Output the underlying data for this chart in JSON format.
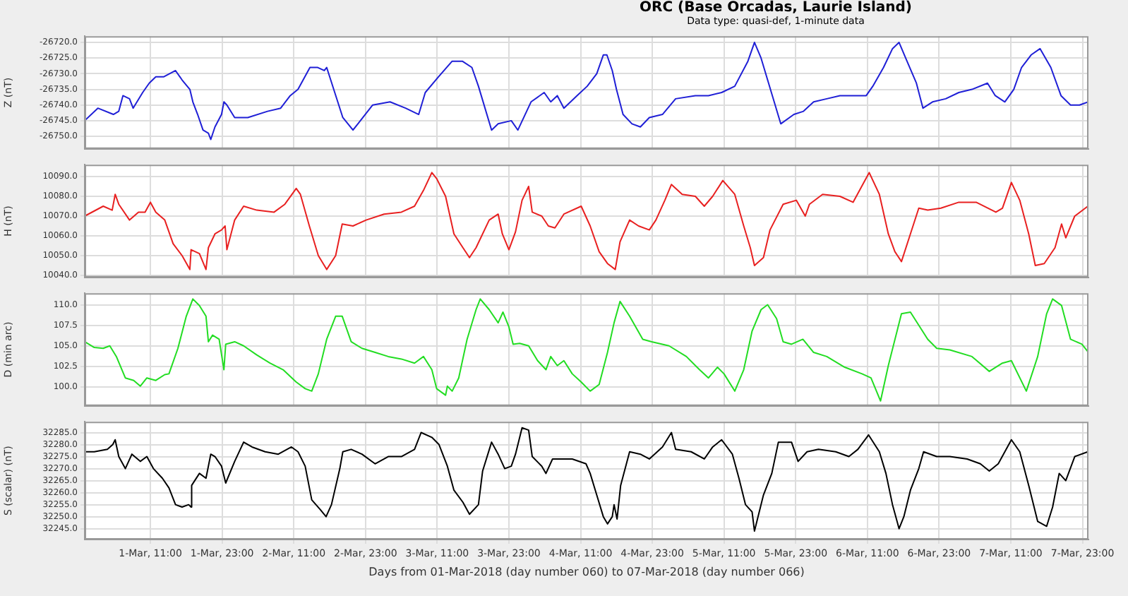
{
  "chart_data": [
    {
      "type": "line",
      "title": "ORC (Base Orcadas, Laurie Island)",
      "subtitle": "Data type: quasi-def, 1-minute data",
      "ylabel": "Z (nT)",
      "grid": true,
      "tick_labels": "y",
      "xlim": [
        "2018-03-01T00:00",
        "2018-03-08T00:00"
      ],
      "xticks": [
        {
          "value": "2018-03-01T11:00",
          "label": null
        },
        {
          "value": "2018-03-01T23:00",
          "label": null
        },
        {
          "value": "2018-03-02T11:00",
          "label": null
        },
        {
          "value": "2018-03-02T23:00",
          "label": null
        },
        {
          "value": "2018-03-03T11:00",
          "label": null
        },
        {
          "value": "2018-03-03T23:00",
          "label": null
        },
        {
          "value": "2018-03-04T11:00",
          "label": null
        },
        {
          "value": "2018-03-04T23:00",
          "label": null
        },
        {
          "value": "2018-03-05T11:00",
          "label": null
        },
        {
          "value": "2018-03-05T23:00",
          "label": null
        },
        {
          "value": "2018-03-06T11:00",
          "label": null
        },
        {
          "value": "2018-03-06T23:00",
          "label": null
        },
        {
          "value": "2018-03-07T11:00",
          "label": null
        },
        {
          "value": "2018-03-07T23:00",
          "label": null
        }
      ],
      "ylim": [
        -26754,
        -26718
      ],
      "yticks": [
        {
          "value": -26750,
          "label": "-26750.0"
        },
        {
          "value": -26745,
          "label": "-26745.0"
        },
        {
          "value": -26740,
          "label": "-26740.0"
        },
        {
          "value": -26735,
          "label": "-26735.0"
        },
        {
          "value": -26730,
          "label": "-26730.0"
        },
        {
          "value": -26725,
          "label": "-26725.0"
        },
        {
          "value": -26720,
          "label": "-26720.0"
        }
      ],
      "x": [
        "2018-03-01T00:00",
        "2018-03-01T02:12",
        "2018-03-01T04:48",
        "2018-03-01T05:42",
        "2018-03-01T06:24",
        "2018-03-01T07:30",
        "2018-03-01T08:06",
        "2018-03-01T09:42",
        "2018-03-01T10:48",
        "2018-03-01T11:54",
        "2018-03-01T13:12",
        "2018-03-01T15:12",
        "2018-03-01T16:18",
        "2018-03-01T17:36",
        "2018-03-01T18:06",
        "2018-03-01T18:54",
        "2018-03-01T19:48",
        "2018-03-01T20:42",
        "2018-03-01T21:06",
        "2018-03-01T21:48",
        "2018-03-01T22:54",
        "2018-03-01T23:18",
        "2018-03-01T23:48",
        "2018-03-02T01:06",
        "2018-03-02T03:18",
        "2018-03-02T06:36",
        "2018-03-02T08:48",
        "2018-03-02T10:24",
        "2018-03-02T11:42",
        "2018-03-02T13:42",
        "2018-03-02T15:00",
        "2018-03-02T16:06",
        "2018-03-02T16:30",
        "2018-03-02T19:12",
        "2018-03-02T20:54",
        "2018-03-03T00:12",
        "2018-03-03T03:06",
        "2018-03-03T05:42",
        "2018-03-03T07:54",
        "2018-03-03T09:00",
        "2018-03-03T11:12",
        "2018-03-03T13:30",
        "2018-03-03T15:12",
        "2018-03-03T16:48",
        "2018-03-03T17:54",
        "2018-03-03T20:06",
        "2018-03-03T21:12",
        "2018-03-03T23:24",
        "2018-03-04T00:30",
        "2018-03-04T02:42",
        "2018-03-04T04:54",
        "2018-03-04T06:00",
        "2018-03-04T07:06",
        "2018-03-04T08:12",
        "2018-03-04T10:24",
        "2018-03-04T12:06",
        "2018-03-04T13:42",
        "2018-03-04T14:48",
        "2018-03-04T15:24",
        "2018-03-04T16:18",
        "2018-03-04T17:00",
        "2018-03-04T18:06",
        "2018-03-04T19:36",
        "2018-03-04T21:00",
        "2018-03-04T22:30",
        "2018-03-05T00:42",
        "2018-03-05T02:54",
        "2018-03-05T06:12",
        "2018-03-05T08:24",
        "2018-03-05T10:36",
        "2018-03-05T12:48",
        "2018-03-05T15:00",
        "2018-03-05T16:06",
        "2018-03-05T17:12",
        "2018-03-05T18:18",
        "2018-03-05T20:30",
        "2018-03-05T22:42",
        "2018-03-06T00:18",
        "2018-03-06T02:00",
        "2018-03-06T04:12",
        "2018-03-06T06:24",
        "2018-03-06T08:36",
        "2018-03-06T10:48",
        "2018-03-06T11:54",
        "2018-03-06T13:42",
        "2018-03-06T15:12",
        "2018-03-06T16:18",
        "2018-03-06T17:24",
        "2018-03-06T19:12",
        "2018-03-06T20:18",
        "2018-03-06T21:54",
        "2018-03-07T00:06",
        "2018-03-07T02:18",
        "2018-03-07T04:30",
        "2018-03-07T07:06",
        "2018-03-07T08:24",
        "2018-03-07T10:00",
        "2018-03-07T11:30",
        "2018-03-07T12:48",
        "2018-03-07T14:24",
        "2018-03-07T15:54",
        "2018-03-07T17:42",
        "2018-03-07T19:24",
        "2018-03-07T21:00",
        "2018-03-07T22:30",
        "2018-03-08T00:00"
      ],
      "series": [
        {
          "color": "#1f1fd6",
          "values": [
            -26745,
            -26741,
            -26743,
            -26742,
            -26737,
            -26738,
            -26741,
            -26736,
            -26733,
            -26731,
            -26731,
            -26729,
            -26732,
            -26735,
            -26739,
            -26743,
            -26748,
            -26749,
            -26751,
            -26747,
            -26743,
            -26739,
            -26740,
            -26744,
            -26744,
            -26742,
            -26741,
            -26737,
            -26735,
            -26728,
            -26728,
            -26729,
            -26728,
            -26744,
            -26748,
            -26740,
            -26739,
            -26741,
            -26743,
            -26736,
            -26731,
            -26726,
            -26726,
            -26728,
            -26734,
            -26748,
            -26746,
            -26745,
            -26748,
            -26739,
            -26736,
            -26739,
            -26737,
            -26741,
            -26737,
            -26734,
            -26730,
            -26724,
            -26724,
            -26729,
            -26735,
            -26743,
            -26746,
            -26747,
            -26744,
            -26743,
            -26738,
            -26737,
            -26737,
            -26736,
            -26734,
            -26726,
            -26720,
            -26725,
            -26732,
            -26746,
            -26743,
            -26742,
            -26739,
            -26738,
            -26737,
            -26737,
            -26737,
            -26734,
            -26728,
            -26722,
            -26720,
            -26725,
            -26733,
            -26741,
            -26739,
            -26738,
            -26736,
            -26735,
            -26733,
            -26737,
            -26739,
            -26735,
            -26728,
            -26724,
            -26722,
            -26728,
            -26737,
            -26740,
            -26740,
            -26739
          ]
        }
      ]
    },
    {
      "type": "line",
      "ylabel": "H (nT)",
      "grid": true,
      "tick_labels": "y",
      "xlim": [
        "2018-03-01T00:00",
        "2018-03-08T00:00"
      ],
      "xticks": [
        {
          "value": "2018-03-01T11:00",
          "label": null
        },
        {
          "value": "2018-03-01T23:00",
          "label": null
        },
        {
          "value": "2018-03-02T11:00",
          "label": null
        },
        {
          "value": "2018-03-02T23:00",
          "label": null
        },
        {
          "value": "2018-03-03T11:00",
          "label": null
        },
        {
          "value": "2018-03-03T23:00",
          "label": null
        },
        {
          "value": "2018-03-04T11:00",
          "label": null
        },
        {
          "value": "2018-03-04T23:00",
          "label": null
        },
        {
          "value": "2018-03-05T11:00",
          "label": null
        },
        {
          "value": "2018-03-05T23:00",
          "label": null
        },
        {
          "value": "2018-03-06T11:00",
          "label": null
        },
        {
          "value": "2018-03-06T23:00",
          "label": null
        },
        {
          "value": "2018-03-07T11:00",
          "label": null
        },
        {
          "value": "2018-03-07T23:00",
          "label": null
        }
      ],
      "ylim": [
        10039,
        10096
      ],
      "yticks": [
        {
          "value": 10040,
          "label": "10040.0"
        },
        {
          "value": 10050,
          "label": "10050.0"
        },
        {
          "value": 10060,
          "label": "10060.0"
        },
        {
          "value": 10070,
          "label": "10070.0"
        },
        {
          "value": 10080,
          "label": "10080.0"
        },
        {
          "value": 10090,
          "label": "10090.0"
        }
      ],
      "x": [
        "2018-03-01T00:00",
        "2018-03-01T03:06",
        "2018-03-01T04:36",
        "2018-03-01T05:06",
        "2018-03-01T05:42",
        "2018-03-01T07:30",
        "2018-03-01T09:00",
        "2018-03-01T10:06",
        "2018-03-01T11:00",
        "2018-03-01T11:54",
        "2018-03-01T13:24",
        "2018-03-01T14:48",
        "2018-03-01T16:18",
        "2018-03-01T17:36",
        "2018-03-01T17:48",
        "2018-03-01T19:12",
        "2018-03-01T20:18",
        "2018-03-01T20:42",
        "2018-03-01T21:48",
        "2018-03-01T22:54",
        "2018-03-01T23:30",
        "2018-03-01T23:48",
        "2018-03-02T01:06",
        "2018-03-02T02:36",
        "2018-03-02T04:48",
        "2018-03-02T07:42",
        "2018-03-02T09:30",
        "2018-03-02T11:24",
        "2018-03-02T12:06",
        "2018-03-02T13:36",
        "2018-03-02T15:06",
        "2018-03-02T16:30",
        "2018-03-02T18:00",
        "2018-03-02T19:06",
        "2018-03-02T20:54",
        "2018-03-02T23:06",
        "2018-03-03T02:06",
        "2018-03-03T05:00",
        "2018-03-03T07:12",
        "2018-03-03T08:42",
        "2018-03-03T10:06",
        "2018-03-03T10:54",
        "2018-03-03T12:24",
        "2018-03-03T13:48",
        "2018-03-03T15:18",
        "2018-03-03T16:24",
        "2018-03-03T17:30",
        "2018-03-03T19:42",
        "2018-03-03T21:12",
        "2018-03-03T21:54",
        "2018-03-03T23:00",
        "2018-03-04T00:06",
        "2018-03-04T01:12",
        "2018-03-04T02:18",
        "2018-03-04T02:54",
        "2018-03-04T04:30",
        "2018-03-04T05:36",
        "2018-03-04T06:42",
        "2018-03-04T08:12",
        "2018-03-04T11:06",
        "2018-03-04T12:36",
        "2018-03-04T14:06",
        "2018-03-04T15:30",
        "2018-03-04T16:48",
        "2018-03-04T17:36",
        "2018-03-04T19:12",
        "2018-03-04T20:42",
        "2018-03-04T22:30",
        "2018-03-04T23:36",
        "2018-03-05T01:06",
        "2018-03-05T02:12",
        "2018-03-05T04:00",
        "2018-03-05T06:12",
        "2018-03-05T07:42",
        "2018-03-05T09:06",
        "2018-03-05T10:48",
        "2018-03-05T12:48",
        "2018-03-05T14:18",
        "2018-03-05T15:24",
        "2018-03-05T16:06",
        "2018-03-05T17:36",
        "2018-03-05T18:42",
        "2018-03-05T20:54",
        "2018-03-05T23:06",
        "2018-03-06T00:36",
        "2018-03-06T01:18",
        "2018-03-06T03:30",
        "2018-03-06T06:24",
        "2018-03-06T08:36",
        "2018-03-06T11:18",
        "2018-03-06T13:00",
        "2018-03-06T14:30",
        "2018-03-06T15:36",
        "2018-03-06T16:42",
        "2018-03-06T18:12",
        "2018-03-06T19:36",
        "2018-03-06T21:06",
        "2018-03-06T23:18",
        "2018-03-07T02:18",
        "2018-03-07T05:12",
        "2018-03-07T08:30",
        "2018-03-07T09:36",
        "2018-03-07T11:06",
        "2018-03-07T12:30",
        "2018-03-07T14:00",
        "2018-03-07T15:06",
        "2018-03-07T16:36",
        "2018-03-07T18:24",
        "2018-03-07T19:30",
        "2018-03-07T20:12",
        "2018-03-07T21:42",
        "2018-03-07T23:54"
      ],
      "series": [
        {
          "color": "#e82020",
          "values": [
            10070,
            10075,
            10073,
            10081,
            10076,
            10068,
            10072,
            10072,
            10077,
            10072,
            10068,
            10056,
            10050,
            10043,
            10053,
            10051,
            10043,
            10054,
            10061,
            10063,
            10065,
            10053,
            10068,
            10075,
            10073,
            10072,
            10076,
            10084,
            10081,
            10065,
            10050,
            10043,
            10050,
            10066,
            10065,
            10068,
            10071,
            10072,
            10075,
            10083,
            10092,
            10089,
            10080,
            10061,
            10054,
            10049,
            10054,
            10068,
            10071,
            10061,
            10053,
            10062,
            10078,
            10085,
            10072,
            10070,
            10065,
            10064,
            10071,
            10075,
            10065,
            10052,
            10046,
            10043,
            10057,
            10068,
            10065,
            10063,
            10068,
            10078,
            10086,
            10081,
            10080,
            10075,
            10080,
            10088,
            10081,
            10065,
            10054,
            10045,
            10049,
            10063,
            10076,
            10078,
            10070,
            10076,
            10081,
            10080,
            10077,
            10092,
            10081,
            10061,
            10052,
            10047,
            10061,
            10074,
            10073,
            10074,
            10077,
            10077,
            10072,
            10074,
            10087,
            10078,
            10061,
            10045,
            10046,
            10054,
            10066,
            10059,
            10070,
            10075
          ]
        }
      ]
    },
    {
      "type": "line",
      "ylabel": "D (min arc)",
      "grid": true,
      "tick_labels": "y",
      "xlim": [
        "2018-03-01T00:00",
        "2018-03-08T00:00"
      ],
      "xticks": [
        {
          "value": "2018-03-01T11:00",
          "label": null
        },
        {
          "value": "2018-03-01T23:00",
          "label": null
        },
        {
          "value": "2018-03-02T11:00",
          "label": null
        },
        {
          "value": "2018-03-02T23:00",
          "label": null
        },
        {
          "value": "2018-03-03T11:00",
          "label": null
        },
        {
          "value": "2018-03-03T23:00",
          "label": null
        },
        {
          "value": "2018-03-04T11:00",
          "label": null
        },
        {
          "value": "2018-03-04T23:00",
          "label": null
        },
        {
          "value": "2018-03-05T11:00",
          "label": null
        },
        {
          "value": "2018-03-05T23:00",
          "label": null
        },
        {
          "value": "2018-03-06T11:00",
          "label": null
        },
        {
          "value": "2018-03-06T23:00",
          "label": null
        },
        {
          "value": "2018-03-07T11:00",
          "label": null
        },
        {
          "value": "2018-03-07T23:00",
          "label": null
        }
      ],
      "ylim": [
        97.7,
        111.4
      ],
      "yticks": [
        {
          "value": 100,
          "label": "100.0"
        },
        102.5,
        {
          "value": 105,
          "label": "105.0"
        },
        107.5,
        {
          "value": 110,
          "label": "110.0"
        }
      ],
      "x": [
        "2018-03-01T00:00",
        "2018-03-01T01:36",
        "2018-03-01T03:06",
        "2018-03-01T04:12",
        "2018-03-01T05:18",
        "2018-03-01T06:48",
        "2018-03-01T08:12",
        "2018-03-01T09:18",
        "2018-03-01T10:24",
        "2018-03-01T11:54",
        "2018-03-01T13:24",
        "2018-03-01T14:06",
        "2018-03-01T15:36",
        "2018-03-01T17:00",
        "2018-03-01T18:06",
        "2018-03-01T19:12",
        "2018-03-01T20:18",
        "2018-03-01T20:42",
        "2018-03-01T21:24",
        "2018-03-01T22:30",
        "2018-03-01T23:18",
        "2018-03-01T23:36",
        "2018-03-02T01:06",
        "2018-03-02T02:36",
        "2018-03-02T04:48",
        "2018-03-02T07:00",
        "2018-03-02T09:12",
        "2018-03-02T11:24",
        "2018-03-02T12:54",
        "2018-03-02T14:00",
        "2018-03-02T15:06",
        "2018-03-02T16:30",
        "2018-03-02T18:00",
        "2018-03-02T19:06",
        "2018-03-02T20:36",
        "2018-03-02T22:24",
        "2018-03-03T00:36",
        "2018-03-03T02:48",
        "2018-03-03T05:00",
        "2018-03-03T07:12",
        "2018-03-03T08:42",
        "2018-03-03T10:06",
        "2018-03-03T10:54",
        "2018-03-03T12:24",
        "2018-03-03T12:42",
        "2018-03-03T13:30",
        "2018-03-03T14:36",
        "2018-03-03T16:00",
        "2018-03-03T17:30",
        "2018-03-03T18:12",
        "2018-03-03T19:42",
        "2018-03-03T21:12",
        "2018-03-03T22:00",
        "2018-03-03T23:00",
        "2018-03-03T23:42",
        "2018-03-04T00:48",
        "2018-03-04T02:18",
        "2018-03-04T03:48",
        "2018-03-04T05:12",
        "2018-03-04T06:00",
        "2018-03-04T07:06",
        "2018-03-04T08:12",
        "2018-03-04T09:36",
        "2018-03-04T11:06",
        "2018-03-04T12:36",
        "2018-03-04T14:06",
        "2018-03-04T15:30",
        "2018-03-04T16:36",
        "2018-03-04T17:36",
        "2018-03-04T19:12",
        "2018-03-04T21:24",
        "2018-03-04T22:54",
        "2018-03-05T01:48",
        "2018-03-05T04:42",
        "2018-03-05T06:54",
        "2018-03-05T08:24",
        "2018-03-05T09:54",
        "2018-03-05T11:00",
        "2018-03-05T12:48",
        "2018-03-05T14:18",
        "2018-03-05T15:42",
        "2018-03-05T17:12",
        "2018-03-05T18:18",
        "2018-03-05T19:48",
        "2018-03-05T20:54",
        "2018-03-05T22:18",
        "2018-03-06T00:12",
        "2018-03-06T02:00",
        "2018-03-06T04:12",
        "2018-03-06T07:12",
        "2018-03-06T10:06",
        "2018-03-06T11:36",
        "2018-03-06T13:12",
        "2018-03-06T14:30",
        "2018-03-06T16:42",
        "2018-03-06T18:12",
        "2018-03-06T21:06",
        "2018-03-06T22:36",
        "2018-03-07T00:48",
        "2018-03-07T04:30",
        "2018-03-07T07:24",
        "2018-03-07T09:36",
        "2018-03-07T11:06",
        "2018-03-07T13:36",
        "2018-03-07T15:30",
        "2018-03-07T17:00",
        "2018-03-07T18:00",
        "2018-03-07T19:30",
        "2018-03-07T21:00",
        "2018-03-07T22:54",
        "2018-03-08T00:00"
      ],
      "series": [
        {
          "color": "#22dd22",
          "values": [
            105.5,
            104.8,
            104.7,
            105.0,
            103.7,
            101.1,
            100.8,
            100.1,
            101.1,
            100.8,
            101.5,
            101.6,
            104.7,
            108.6,
            110.7,
            109.9,
            108.6,
            105.5,
            106.3,
            105.8,
            102.1,
            105.2,
            105.5,
            105.0,
            103.9,
            102.9,
            102.1,
            100.6,
            99.8,
            99.5,
            101.6,
            105.8,
            108.6,
            108.6,
            105.5,
            104.7,
            104.2,
            103.7,
            103.4,
            102.9,
            103.7,
            102.1,
            99.8,
            99.0,
            100.1,
            99.5,
            101.1,
            105.8,
            109.4,
            110.7,
            109.4,
            107.8,
            109.1,
            107.3,
            105.2,
            105.3,
            105.0,
            103.2,
            102.1,
            103.7,
            102.6,
            103.2,
            101.6,
            100.6,
            99.5,
            100.3,
            104.2,
            107.8,
            110.4,
            108.6,
            105.8,
            105.5,
            105.0,
            103.7,
            102.1,
            101.1,
            102.4,
            101.6,
            99.5,
            102.1,
            106.8,
            109.4,
            110.0,
            108.3,
            105.5,
            105.2,
            105.8,
            104.2,
            103.7,
            102.4,
            101.6,
            101.1,
            98.3,
            102.6,
            108.9,
            109.1,
            105.8,
            104.7,
            104.5,
            103.7,
            101.9,
            102.9,
            103.2,
            99.5,
            103.7,
            108.9,
            110.7,
            109.9,
            105.8,
            105.2,
            104.2
          ]
        }
      ]
    },
    {
      "type": "line",
      "ylabel": "S (scalar) (nT)",
      "xlabel": "Days from 01-Mar-2018 (day number 060) to 07-Mar-2018 (day number 066)",
      "grid": true,
      "xlim": [
        "2018-03-01T00:00",
        "2018-03-08T00:00"
      ],
      "xticks": [
        {
          "value": "2018-03-01T11:00",
          "label": "1-Mar, 11:00"
        },
        {
          "value": "2018-03-01T23:00",
          "label": "1-Mar, 23:00"
        },
        {
          "value": "2018-03-02T11:00",
          "label": "2-Mar, 11:00"
        },
        {
          "value": "2018-03-02T23:00",
          "label": "2-Mar, 23:00"
        },
        {
          "value": "2018-03-03T11:00",
          "label": "3-Mar, 11:00"
        },
        {
          "value": "2018-03-03T23:00",
          "label": "3-Mar, 23:00"
        },
        {
          "value": "2018-03-04T11:00",
          "label": "4-Mar, 11:00"
        },
        {
          "value": "2018-03-04T23:00",
          "label": "4-Mar, 23:00"
        },
        {
          "value": "2018-03-05T11:00",
          "label": "5-Mar, 11:00"
        },
        {
          "value": "2018-03-05T23:00",
          "label": "5-Mar, 23:00"
        },
        {
          "value": "2018-03-06T11:00",
          "label": "6-Mar, 11:00"
        },
        {
          "value": "2018-03-06T23:00",
          "label": "6-Mar, 23:00"
        },
        {
          "value": "2018-03-07T11:00",
          "label": "7-Mar, 11:00"
        },
        {
          "value": "2018-03-07T23:00",
          "label": "7-Mar, 23:00"
        }
      ],
      "ylim": [
        32240.5,
        32289.5
      ],
      "yticks": [
        {
          "value": 32245,
          "label": "32245.0"
        },
        {
          "value": 32250,
          "label": "32250.0"
        },
        {
          "value": 32255,
          "label": "32255.0"
        },
        {
          "value": 32260,
          "label": "32260.0"
        },
        {
          "value": 32265,
          "label": "32265.0"
        },
        {
          "value": 32270,
          "label": "32270.0"
        },
        {
          "value": 32275,
          "label": "32275.0"
        },
        {
          "value": 32280,
          "label": "32280.0"
        },
        {
          "value": 32285,
          "label": "32285.0"
        }
      ],
      "x": [
        "2018-03-01T00:00",
        "2018-03-01T01:36",
        "2018-03-01T03:48",
        "2018-03-01T04:42",
        "2018-03-01T05:06",
        "2018-03-01T05:42",
        "2018-03-01T06:48",
        "2018-03-01T07:54",
        "2018-03-01T09:18",
        "2018-03-01T10:24",
        "2018-03-01T11:30",
        "2018-03-01T13:00",
        "2018-03-01T14:06",
        "2018-03-01T15:12",
        "2018-03-01T16:18",
        "2018-03-01T17:24",
        "2018-03-01T17:48",
        "2018-03-01T17:54",
        "2018-03-01T19:12",
        "2018-03-01T20:18",
        "2018-03-01T21:06",
        "2018-03-01T21:48",
        "2018-03-01T22:54",
        "2018-03-01T23:36",
        "2018-03-02T01:06",
        "2018-03-02T02:36",
        "2018-03-02T04:00",
        "2018-03-02T06:12",
        "2018-03-02T08:24",
        "2018-03-02T10:36",
        "2018-03-02T11:42",
        "2018-03-02T12:54",
        "2018-03-02T14:00",
        "2018-03-02T15:24",
        "2018-03-02T16:24",
        "2018-03-02T17:18",
        "2018-03-02T18:42",
        "2018-03-02T19:12",
        "2018-03-02T20:36",
        "2018-03-02T22:24",
        "2018-03-03T00:36",
        "2018-03-03T02:48",
        "2018-03-03T05:00",
        "2018-03-03T07:12",
        "2018-03-03T08:18",
        "2018-03-03T10:06",
        "2018-03-03T11:18",
        "2018-03-03T12:42",
        "2018-03-03T13:48",
        "2018-03-03T15:18",
        "2018-03-03T16:24",
        "2018-03-03T17:54",
        "2018-03-03T18:36",
        "2018-03-03T20:06",
        "2018-03-03T21:12",
        "2018-03-03T22:18",
        "2018-03-03T23:24",
        "2018-03-04T00:06",
        "2018-03-04T01:12",
        "2018-03-04T02:18",
        "2018-03-04T02:54",
        "2018-03-04T04:30",
        "2018-03-04T05:12",
        "2018-03-04T06:18",
        "2018-03-04T08:12",
        "2018-03-04T09:36",
        "2018-03-04T11:54",
        "2018-03-04T12:36",
        "2018-03-04T13:42",
        "2018-03-04T14:48",
        "2018-03-04T15:30",
        "2018-03-04T16:18",
        "2018-03-04T16:36",
        "2018-03-04T17:06",
        "2018-03-04T17:42",
        "2018-03-04T19:12",
        "2018-03-04T21:00",
        "2018-03-04T22:30",
        "2018-03-05T00:42",
        "2018-03-05T02:12",
        "2018-03-05T02:54",
        "2018-03-05T05:30",
        "2018-03-05T07:42",
        "2018-03-05T09:06",
        "2018-03-05T10:36",
        "2018-03-05T12:24",
        "2018-03-05T13:30",
        "2018-03-05T14:36",
        "2018-03-05T15:42",
        "2018-03-05T16:06",
        "2018-03-05T17:36",
        "2018-03-05T19:00",
        "2018-03-05T20:06",
        "2018-03-05T22:18",
        "2018-03-05T23:24",
        "2018-03-06T00:54",
        "2018-03-06T02:48",
        "2018-03-06T05:42",
        "2018-03-06T07:54",
        "2018-03-06T09:24",
        "2018-03-06T11:12",
        "2018-03-06T13:00",
        "2018-03-06T14:06",
        "2018-03-06T15:12",
        "2018-03-06T16:18",
        "2018-03-06T17:06",
        "2018-03-06T18:12",
        "2018-03-06T19:36",
        "2018-03-06T20:24",
        "2018-03-06T22:36",
        "2018-03-07T00:48",
        "2018-03-07T03:42",
        "2018-03-07T05:54",
        "2018-03-07T07:24",
        "2018-03-07T08:54",
        "2018-03-07T11:06",
        "2018-03-07T12:30",
        "2018-03-07T14:00",
        "2018-03-07T15:30",
        "2018-03-07T17:00",
        "2018-03-07T18:00",
        "2018-03-07T19:06",
        "2018-03-07T20:12",
        "2018-03-07T21:42",
        "2018-03-07T23:54"
      ],
      "series": [
        {
          "color": "#000000",
          "values": [
            32277,
            32277,
            32278,
            32280,
            32282,
            32275,
            32270,
            32276,
            32273,
            32275,
            32270,
            32266,
            32262,
            32255,
            32254,
            32255,
            32254,
            32263,
            32268,
            32266,
            32276,
            32275,
            32271,
            32264,
            32273,
            32281,
            32279,
            32277,
            32276,
            32279,
            32277,
            32271,
            32257,
            32253,
            32250,
            32255,
            32270,
            32277,
            32278,
            32276,
            32272,
            32275,
            32275,
            32278,
            32285,
            32283,
            32280,
            32271,
            32261,
            32256,
            32251,
            32255,
            32269,
            32281,
            32276,
            32270,
            32271,
            32276,
            32287,
            32286,
            32275,
            32271,
            32268,
            32274,
            32274,
            32274,
            32272,
            32268,
            32259,
            32250,
            32247,
            32250,
            32255,
            32249,
            32263,
            32277,
            32276,
            32274,
            32279,
            32285,
            32278,
            32277,
            32274,
            32279,
            32282,
            32276,
            32266,
            32255,
            32252,
            32244,
            32259,
            32268,
            32281,
            32281,
            32273,
            32277,
            32278,
            32277,
            32275,
            32278,
            32284,
            32277,
            32268,
            32255,
            32245,
            32250,
            32261,
            32270,
            32277,
            32275,
            32275,
            32274,
            32272,
            32269,
            32272,
            32282,
            32277,
            32263,
            32248,
            32246,
            32254,
            32268,
            32265,
            32275,
            32277
          ]
        }
      ]
    }
  ]
}
